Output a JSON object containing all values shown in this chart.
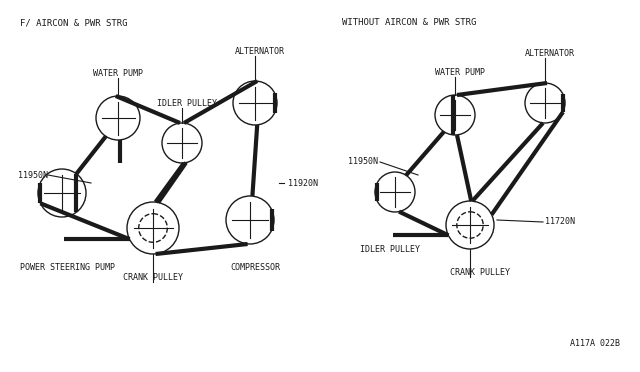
{
  "bg_color": "#ffffff",
  "line_color": "#1a1a1a",
  "belt_lw": 3.0,
  "thin_lw": 0.8,
  "circle_lw": 1.0,
  "font_family": "monospace",
  "font_size": 6.0,
  "title_font_size": 6.5,
  "left_title": "F/ AIRCON & PWR STRG",
  "right_title": "WITHOUT AIRCON & PWR STRG",
  "ref_code": "A117A 022B",
  "left": {
    "water_pump": [
      1.45,
      2.45,
      0.24
    ],
    "idler_pulley": [
      2.1,
      2.2,
      0.22
    ],
    "alternator": [
      2.85,
      2.45,
      0.24
    ],
    "power_steering": [
      0.72,
      1.55,
      0.26
    ],
    "crank_pulley": [
      1.7,
      1.22,
      0.28
    ],
    "compressor": [
      2.72,
      1.28,
      0.26
    ]
  },
  "right": {
    "water_pump": [
      4.95,
      2.45,
      0.22
    ],
    "alternator": [
      5.85,
      2.45,
      0.22
    ],
    "idler_pulley": [
      4.3,
      1.6,
      0.22
    ],
    "crank_pulley": [
      5.1,
      1.25,
      0.26
    ]
  }
}
